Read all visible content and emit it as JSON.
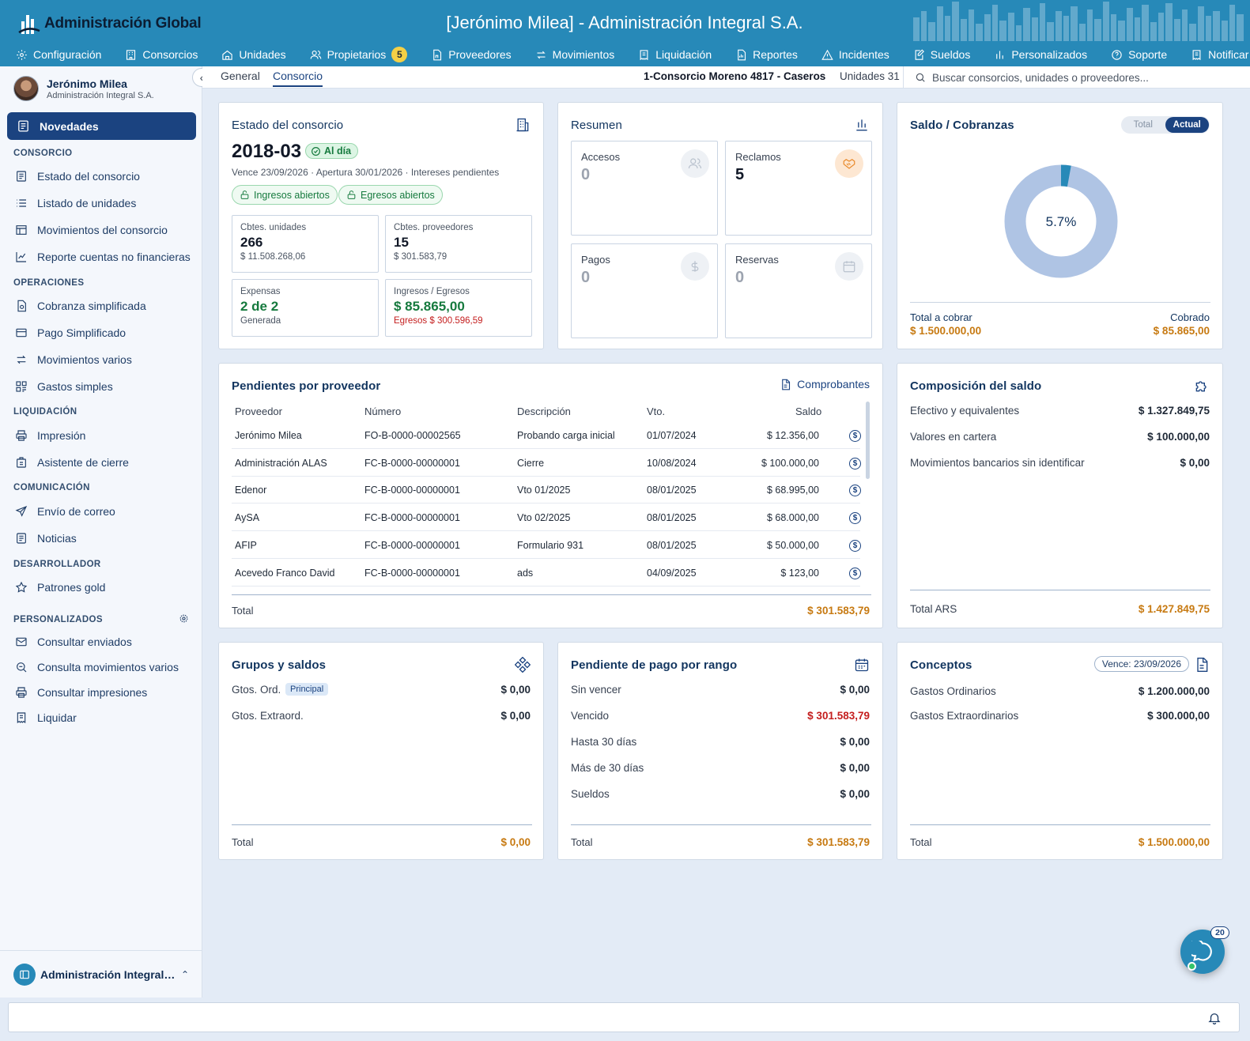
{
  "header": {
    "logo_text": "Administración Global",
    "app_title": "[Jerónimo Milea] - Administración Integral S.A.",
    "nav": [
      {
        "label": "Configuración",
        "icon": "gear-icon"
      },
      {
        "label": "Consorcios",
        "icon": "building-icon"
      },
      {
        "label": "Unidades",
        "icon": "home-icon"
      },
      {
        "label": "Propietarios",
        "icon": "users-icon",
        "badge": "5"
      },
      {
        "label": "Proveedores",
        "icon": "provider-doc-icon"
      },
      {
        "label": "Movimientos",
        "icon": "swap-icon"
      },
      {
        "label": "Liquidación",
        "icon": "receipt-icon"
      },
      {
        "label": "Reportes",
        "icon": "report-icon"
      },
      {
        "label": "Incidentes",
        "icon": "warning-icon"
      },
      {
        "label": "Sueldos",
        "icon": "edit-doc-icon"
      },
      {
        "label": "Personalizados",
        "icon": "bars-icon"
      },
      {
        "label": "Soporte",
        "icon": "help-icon"
      },
      {
        "label": "Notificar",
        "icon": "notify-icon"
      }
    ]
  },
  "sidebar": {
    "user_name": "Jerónimo Milea",
    "user_company": "Administración Integral S.A.",
    "active_item": "Novedades",
    "sections": [
      {
        "title": "CONSORCIO",
        "items": [
          "Estado del consorcio",
          "Listado de unidades",
          "Movimientos del consorcio",
          "Reporte cuentas no financieras"
        ]
      },
      {
        "title": "OPERACIONES",
        "items": [
          "Cobranza simplificada",
          "Pago Simplificado",
          "Movimientos varios",
          "Gastos simples"
        ]
      },
      {
        "title": "LIQUIDACIÓN",
        "items": [
          "Impresión",
          "Asistente de cierre"
        ]
      },
      {
        "title": "COMUNICACIÓN",
        "items": [
          "Envío de correo",
          "Noticias"
        ]
      },
      {
        "title": "DESARROLLADOR",
        "items": [
          "Patrones gold"
        ]
      },
      {
        "title": "PERSONALIZADOS",
        "items": [
          "Consultar enviados",
          "Consulta movimientos varios",
          "Consultar impresiones",
          "Liquidar"
        ]
      }
    ],
    "footer_label": "Administración Integral S.A."
  },
  "subbar": {
    "tabs": [
      "General",
      "Consorcio"
    ],
    "active_tab": "Consorcio",
    "consorcio_name": "1-Consorcio Moreno 4817 - Caseros",
    "units": "Unidades 31",
    "search_placeholder": "Buscar consorcios, unidades o proveedores..."
  },
  "estado": {
    "title": "Estado del consorcio",
    "period": "2018-03",
    "status": "Al día",
    "details": "Vence 23/09/2026 · Apertura 30/01/2026 · Intereses pendientes",
    "pills": [
      "Ingresos abiertos",
      "Egresos abiertos"
    ],
    "boxes": [
      {
        "label": "Cbtes. unidades",
        "value": "266",
        "sub": "$ 11.508.268,06"
      },
      {
        "label": "Cbtes. proveedores",
        "value": "15",
        "sub": "$ 301.583,79"
      },
      {
        "label": "Expensas",
        "value": "2 de 2",
        "sub": "Generada"
      },
      {
        "label": "Ingresos / Egresos",
        "value": "$ 85.865,00",
        "sub": "Egresos $ 300.596,59"
      }
    ]
  },
  "resumen": {
    "title": "Resumen",
    "boxes": [
      {
        "label": "Accesos",
        "value": "0",
        "icon": "users-icon"
      },
      {
        "label": "Reclamos",
        "value": "5",
        "icon": "handshake-icon"
      },
      {
        "label": "Pagos",
        "value": "0",
        "icon": "dollar-icon"
      },
      {
        "label": "Reservas",
        "value": "0",
        "icon": "calendar-icon"
      }
    ]
  },
  "saldo": {
    "title": "Saldo / Cobranzas",
    "toggle": [
      "Total",
      "Actual"
    ],
    "toggle_active": "Actual",
    "percent_label": "5.7%",
    "percent": 5.7,
    "total_label": "Total a cobrar",
    "total_value": "$ 1.500.000,00",
    "cobrado_label": "Cobrado",
    "cobrado_value": "$ 85.865,00"
  },
  "pendientes": {
    "title": "Pendientes por proveedor",
    "link": "Comprobantes",
    "columns": [
      "Proveedor",
      "Número",
      "Descripción",
      "Vto.",
      "Saldo"
    ],
    "rows": [
      [
        "Jerónimo Milea",
        "FO-B-0000-00002565",
        "Probando carga inicial",
        "01/07/2024",
        "$ 12.356,00"
      ],
      [
        "Administración ALAS",
        "FC-B-0000-00000001",
        "Cierre",
        "10/08/2024",
        "$ 100.000,00"
      ],
      [
        "Edenor",
        "FC-B-0000-00000001",
        "Vto 01/2025",
        "08/01/2025",
        "$ 68.995,00"
      ],
      [
        "AySA",
        "FC-B-0000-00000001",
        "Vto 02/2025",
        "08/01/2025",
        "$ 68.000,00"
      ],
      [
        "AFIP",
        "FC-B-0000-00000001",
        "Formulario 931",
        "08/01/2025",
        "$ 50.000,00"
      ],
      [
        "Acevedo Franco David",
        "FC-B-0000-00000001",
        "ads",
        "04/09/2025",
        "$ 123,00"
      ]
    ],
    "total_label": "Total",
    "total_value": "$ 301.583,79"
  },
  "composicion": {
    "title": "Composición del saldo",
    "rows": [
      {
        "label": "Efectivo y equivalentes",
        "value": "$ 1.327.849,75"
      },
      {
        "label": "Valores en cartera",
        "value": "$ 100.000,00"
      },
      {
        "label": "Movimientos bancarios sin identificar",
        "value": "$ 0,00"
      }
    ],
    "total_label": "Total ARS",
    "total_value": "$ 1.427.849,75"
  },
  "grupos": {
    "title": "Grupos y saldos",
    "rows": [
      {
        "label": "Gtos. Ord.",
        "chip": "Principal",
        "value": "$ 0,00"
      },
      {
        "label": "Gtos. Extraord.",
        "value": "$ 0,00"
      }
    ],
    "total_label": "Total",
    "total_value": "$ 0,00"
  },
  "rango": {
    "title": "Pendiente de pago por rango",
    "rows": [
      {
        "label": "Sin vencer",
        "value": "$ 0,00"
      },
      {
        "label": "Vencido",
        "value": "$ 301.583,79"
      },
      {
        "label": "Hasta 30 días",
        "value": "$ 0,00"
      },
      {
        "label": "Más de 30 días",
        "value": "$ 0,00"
      },
      {
        "label": "Sueldos",
        "value": "$ 0,00"
      }
    ],
    "total_label": "Total",
    "total_value": "$ 301.583,79"
  },
  "conceptos": {
    "title": "Conceptos",
    "chip": "Vence: 23/09/2026",
    "rows": [
      {
        "label": "Gastos Ordinarios",
        "value": "$ 1.200.000,00"
      },
      {
        "label": "Gastos Extraordinarios",
        "value": "$ 300.000,00"
      }
    ],
    "total_label": "Total",
    "total_value": "$ 1.500.000,00"
  },
  "chat": {
    "badge": "20"
  },
  "colors": {
    "primary": "#2789b8",
    "navy": "#1b4380",
    "orange": "#c77a12",
    "green": "#167a3e",
    "red": "#c41e1e",
    "donut": "#afc4e4"
  }
}
